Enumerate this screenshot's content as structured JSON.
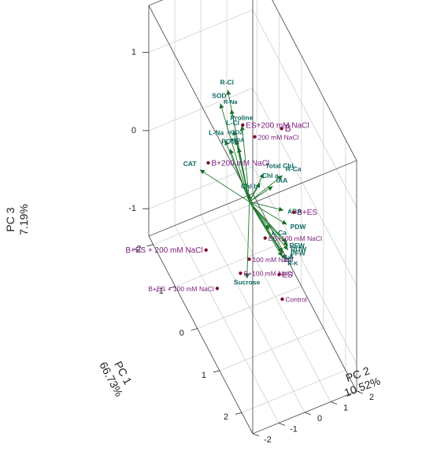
{
  "chart_data": {
    "type": "scatter",
    "subtype": "3d-pca-biplot",
    "axes": {
      "x": {
        "label_name": "PC 1",
        "label_pct": "66.73%",
        "ticks": [
          "-2",
          "-1",
          "0",
          "1",
          "2"
        ],
        "range": [
          -2.2,
          2.5
        ]
      },
      "y": {
        "label_name": "PC 2",
        "label_pct": "10.52%",
        "ticks": [
          "-2",
          "-1",
          "0",
          "1",
          "2"
        ],
        "range": [
          -2,
          2
        ]
      },
      "z": {
        "label_name": "PC 3",
        "label_pct": "7.19%",
        "ticks": [
          "-1",
          "0",
          "1"
        ],
        "range": [
          -1.35,
          1.6
        ]
      }
    },
    "observations": [
      {
        "label": "ES+200 mM NaCl",
        "pc1": 0.05,
        "pc2": -0.3,
        "pc3": 1.05
      },
      {
        "label": "200 mM NaCl",
        "pc1": 0.3,
        "pc2": -0.05,
        "pc3": 1.0
      },
      {
        "label": "B",
        "pc1": 0.4,
        "pc2": 0.9,
        "pc3": 1.03
      },
      {
        "label": "B+200 mM NaCl",
        "pc1": -0.45,
        "pc2": -1.2,
        "pc3": 0.42
      },
      {
        "label": "B+ES",
        "pc1": 1.25,
        "pc2": 0.65,
        "pc3": 0.45
      },
      {
        "label": "ES",
        "pc1": 1.05,
        "pc2": 0.25,
        "pc3": -0.4
      },
      {
        "label": "Control",
        "pc1": 1.25,
        "pc2": 0.2,
        "pc3": -0.6
      },
      {
        "label": "ES+100 mM NaCl",
        "pc1": 0.3,
        "pc2": 0.35,
        "pc3": -0.35
      },
      {
        "label": "100 mM NaCl",
        "pc1": 0.05,
        "pc2": -0.05,
        "pc3": -0.7
      },
      {
        "label": "B+100 mM NaCl",
        "pc1": -0.05,
        "pc2": -0.3,
        "pc3": -0.9
      },
      {
        "label": "B+ES + 200 mM NaCl",
        "pc1": -0.55,
        "pc2": -1.2,
        "pc3": -0.75
      },
      {
        "label": "B+ES + 100 mM NaCl",
        "pc1": -0.4,
        "pc2": -0.9,
        "pc3": -1.2
      }
    ],
    "loadings": [
      {
        "label": "R-Cl",
        "pc1": -0.45,
        "pc2": -0.45,
        "pc3": 1.25
      },
      {
        "label": "SOD",
        "pc1": -0.55,
        "pc2": -0.65,
        "pc3": 1.05
      },
      {
        "label": "Proline",
        "pc1": -0.1,
        "pc2": -0.2,
        "pc3": 0.95
      },
      {
        "label": "R-Na",
        "pc1": -0.35,
        "pc2": -0.4,
        "pc3": 1.05
      },
      {
        "label": "L-Cl",
        "pc1": -0.3,
        "pc2": -0.35,
        "pc3": 0.8
      },
      {
        "label": "H2O2",
        "pc1": -0.25,
        "pc2": -0.3,
        "pc3": 0.7
      },
      {
        "label": "MDA",
        "pc1": -0.2,
        "pc2": -0.25,
        "pc3": 0.62
      },
      {
        "label": "L-Na",
        "pc1": -0.45,
        "pc2": -0.55,
        "pc3": 0.62
      },
      {
        "label": "POD",
        "pc1": -0.35,
        "pc2": -0.45,
        "pc3": 0.55
      },
      {
        "label": "R-Ca",
        "pc1": 0.85,
        "pc2": 0.55,
        "pc3": 0.72
      },
      {
        "label": "Total Chl",
        "pc1": 0.35,
        "pc2": 0.25,
        "pc3": 0.52
      },
      {
        "label": "IAA",
        "pc1": 0.65,
        "pc2": 0.35,
        "pc3": 0.5
      },
      {
        "label": "Chl a",
        "pc1": 0.25,
        "pc2": 0.2,
        "pc3": 0.35
      },
      {
        "label": "ABA",
        "pc1": 0.9,
        "pc2": 0.55,
        "pc3": 0.3
      },
      {
        "label": "PDW",
        "pc1": 1.05,
        "pc2": 0.55,
        "pc3": 0.2
      },
      {
        "label": "Chl b",
        "pc1": 0.0,
        "pc2": 0.0,
        "pc3": 0.1
      },
      {
        "label": "CAT",
        "pc1": -0.95,
        "pc2": -1.1,
        "pc3": 0.05
      },
      {
        "label": "L-Ca",
        "pc1": 0.55,
        "pc2": 0.3,
        "pc3": -0.1
      },
      {
        "label": "RDW",
        "pc1": 1.1,
        "pc2": 0.55,
        "pc3": -0.05
      },
      {
        "label": "RFW",
        "pc1": 1.1,
        "pc2": 0.5,
        "pc3": 0.0
      },
      {
        "label": "PFW",
        "pc1": 1.1,
        "pc2": 0.55,
        "pc3": -0.1
      },
      {
        "label": "L-K",
        "pc1": 0.95,
        "pc2": 0.45,
        "pc3": -0.2
      },
      {
        "label": "LA",
        "pc1": 1.0,
        "pc2": 0.45,
        "pc3": -0.18
      },
      {
        "label": "R-K",
        "pc1": 1.05,
        "pc2": 0.5,
        "pc3": -0.24
      },
      {
        "label": "LR",
        "pc1": 0.95,
        "pc2": 0.45,
        "pc3": -0.25
      },
      {
        "label": "Sucrose",
        "pc1": -0.05,
        "pc2": -0.05,
        "pc3": -1.0
      }
    ],
    "grid": true,
    "colors": {
      "loading_arrow": "#1e7a2c",
      "loading_text": "#106b63",
      "obs_dot": "#7a0f2e",
      "obs_text": "#7a1a7a"
    }
  }
}
